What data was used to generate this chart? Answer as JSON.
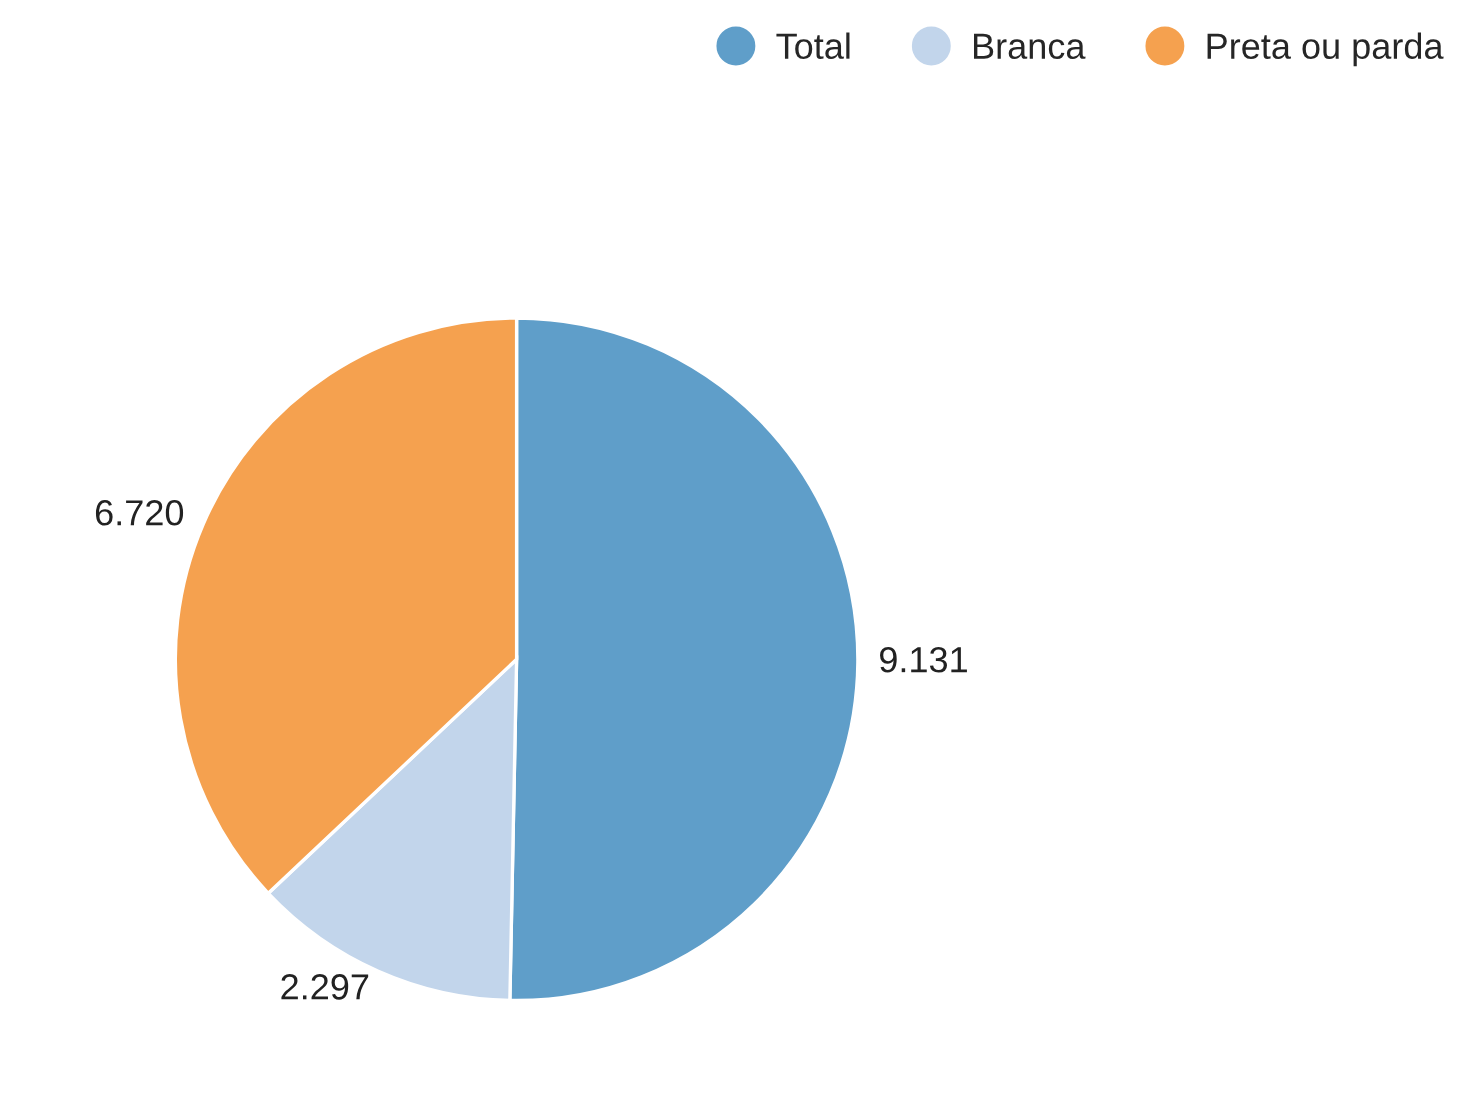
{
  "chart_data": {
    "type": "pie",
    "categories": [
      "Total",
      "Branca",
      "Preta ou parda"
    ],
    "values": [
      9131,
      2297,
      6720
    ],
    "value_labels": [
      "9.131",
      "2.297",
      "6.720"
    ],
    "colors": [
      "#5f9ec9",
      "#c2d5eb",
      "#f5a14f"
    ],
    "legend": "top right"
  }
}
